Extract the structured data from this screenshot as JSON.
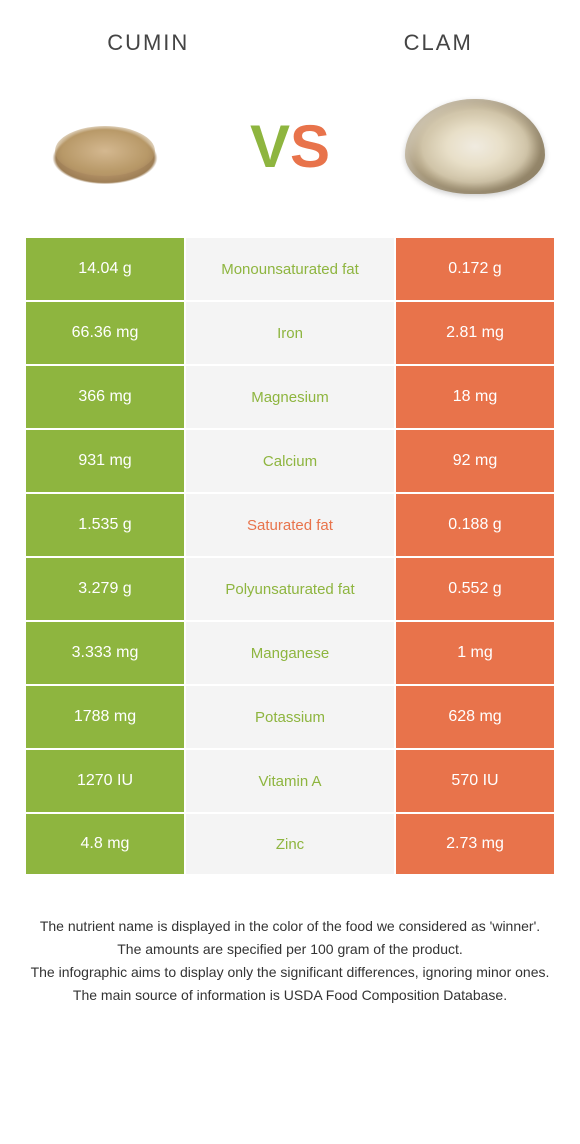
{
  "colors": {
    "cumin": "#8eb53f",
    "clam": "#e8734b",
    "mid_bg": "#f4f4f4",
    "text": "#333333"
  },
  "header": {
    "left": "Cumin",
    "right": "Clam"
  },
  "vs": {
    "v": "V",
    "s": "S"
  },
  "table": {
    "type": "comparison-table",
    "rows": [
      {
        "left": "14.04 g",
        "label": "Monounsaturated fat",
        "right": "0.172 g",
        "winner": "cumin"
      },
      {
        "left": "66.36 mg",
        "label": "Iron",
        "right": "2.81 mg",
        "winner": "cumin"
      },
      {
        "left": "366 mg",
        "label": "Magnesium",
        "right": "18 mg",
        "winner": "cumin"
      },
      {
        "left": "931 mg",
        "label": "Calcium",
        "right": "92 mg",
        "winner": "cumin"
      },
      {
        "left": "1.535 g",
        "label": "Saturated fat",
        "right": "0.188 g",
        "winner": "clam"
      },
      {
        "left": "3.279 g",
        "label": "Polyunsaturated fat",
        "right": "0.552 g",
        "winner": "cumin"
      },
      {
        "left": "3.333 mg",
        "label": "Manganese",
        "right": "1 mg",
        "winner": "cumin"
      },
      {
        "left": "1788 mg",
        "label": "Potassium",
        "right": "628 mg",
        "winner": "cumin"
      },
      {
        "left": "1270 IU",
        "label": "Vitamin A",
        "right": "570 IU",
        "winner": "cumin"
      },
      {
        "left": "4.8 mg",
        "label": "Zinc",
        "right": "2.73 mg",
        "winner": "cumin"
      }
    ]
  },
  "footer": {
    "lines": [
      "The nutrient name is displayed in the color of the food we considered as 'winner'.",
      "The amounts are specified per 100 gram of the product.",
      "The infographic aims to display only the significant differences, ignoring minor ones.",
      "The main source of information is USDA Food Composition Database."
    ]
  }
}
